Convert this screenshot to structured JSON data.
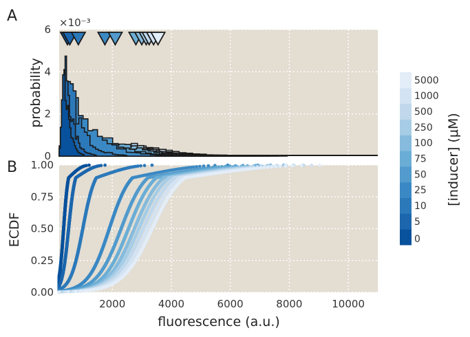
{
  "chart_data": [
    {
      "panel": "A",
      "type": "histogram",
      "ylabel": "probability",
      "y_multiplier": "×10⁻³",
      "xlim": [
        200,
        11000
      ],
      "ylim": [
        0,
        6
      ],
      "ytick_labels": [
        "0",
        "2",
        "4",
        "6"
      ],
      "grid": true,
      "series": [
        {
          "name": "0",
          "color": "#08519c",
          "peak_x": 330,
          "peak_y": 5.2
        },
        {
          "name": "5",
          "color": "#1c66ad",
          "peak_x": 420,
          "peak_y": 4.3
        },
        {
          "name": "10",
          "color": "#2c79ba",
          "peak_x": 560,
          "peak_y": 3.3
        },
        {
          "name": "25",
          "color": "#3b89c4",
          "peak_x": 700,
          "peak_y": 2.8
        },
        {
          "name": "50",
          "color": "#529bcc",
          "peak_x": 1600,
          "peak_y": 0.95
        },
        {
          "name": "75",
          "color": "#6aaed6",
          "peak_x": 2200,
          "peak_y": 0.7
        },
        {
          "name": "100",
          "color": "#86bbdd",
          "peak_x": 2400,
          "peak_y": 0.6
        },
        {
          "name": "250",
          "color": "#a7cde6",
          "peak_x": 2600,
          "peak_y": 0.55
        },
        {
          "name": "500",
          "color": "#c1d8ec",
          "peak_x": 2900,
          "peak_y": 0.5
        },
        {
          "name": "1000",
          "color": "#d3e3f3",
          "peak_x": 3100,
          "peak_y": 0.45
        },
        {
          "name": "5000",
          "color": "#e2edf8",
          "peak_x": 3300,
          "peak_y": 0.4
        }
      ],
      "mean_markers": [
        480,
        560,
        850,
        1750,
        2100,
        2800,
        3000,
        3150,
        3250,
        3400,
        3550
      ]
    },
    {
      "panel": "B",
      "type": "ecdf",
      "ylabel": "ECDF",
      "xlabel": "fluorescence (a.u.)",
      "xlim": [
        200,
        11000
      ],
      "ylim": [
        0,
        1
      ],
      "xtick_labels": [
        "2000",
        "4000",
        "6000",
        "8000",
        "10000"
      ],
      "ytick_labels": [
        "0.00",
        "0.25",
        "0.50",
        "0.75",
        "1.00"
      ],
      "grid": true,
      "series": [
        {
          "name": "0",
          "median": 350,
          "spread": 140
        },
        {
          "name": "5",
          "median": 520,
          "spread": 200
        },
        {
          "name": "10",
          "median": 1000,
          "spread": 380
        },
        {
          "name": "25",
          "median": 1900,
          "spread": 650
        },
        {
          "name": "50",
          "median": 2300,
          "spread": 750
        },
        {
          "name": "75",
          "median": 2550,
          "spread": 780
        },
        {
          "name": "100",
          "median": 2750,
          "spread": 820
        },
        {
          "name": "250",
          "median": 2900,
          "spread": 850
        },
        {
          "name": "500",
          "median": 3050,
          "spread": 880
        },
        {
          "name": "1000",
          "median": 3200,
          "spread": 900
        },
        {
          "name": "5000",
          "median": 3350,
          "spread": 920
        }
      ]
    }
  ],
  "panel_labels": {
    "a": "A",
    "b": "B"
  },
  "colorbar": {
    "label": "[inducer] (μM)",
    "ticks": [
      "0",
      "5",
      "10",
      "25",
      "50",
      "75",
      "100",
      "250",
      "500",
      "1000",
      "5000"
    ]
  },
  "colors": {
    "plot_bg": "#e3ddd2",
    "grid": "#ffffff",
    "outline": "#1a1a1a"
  }
}
